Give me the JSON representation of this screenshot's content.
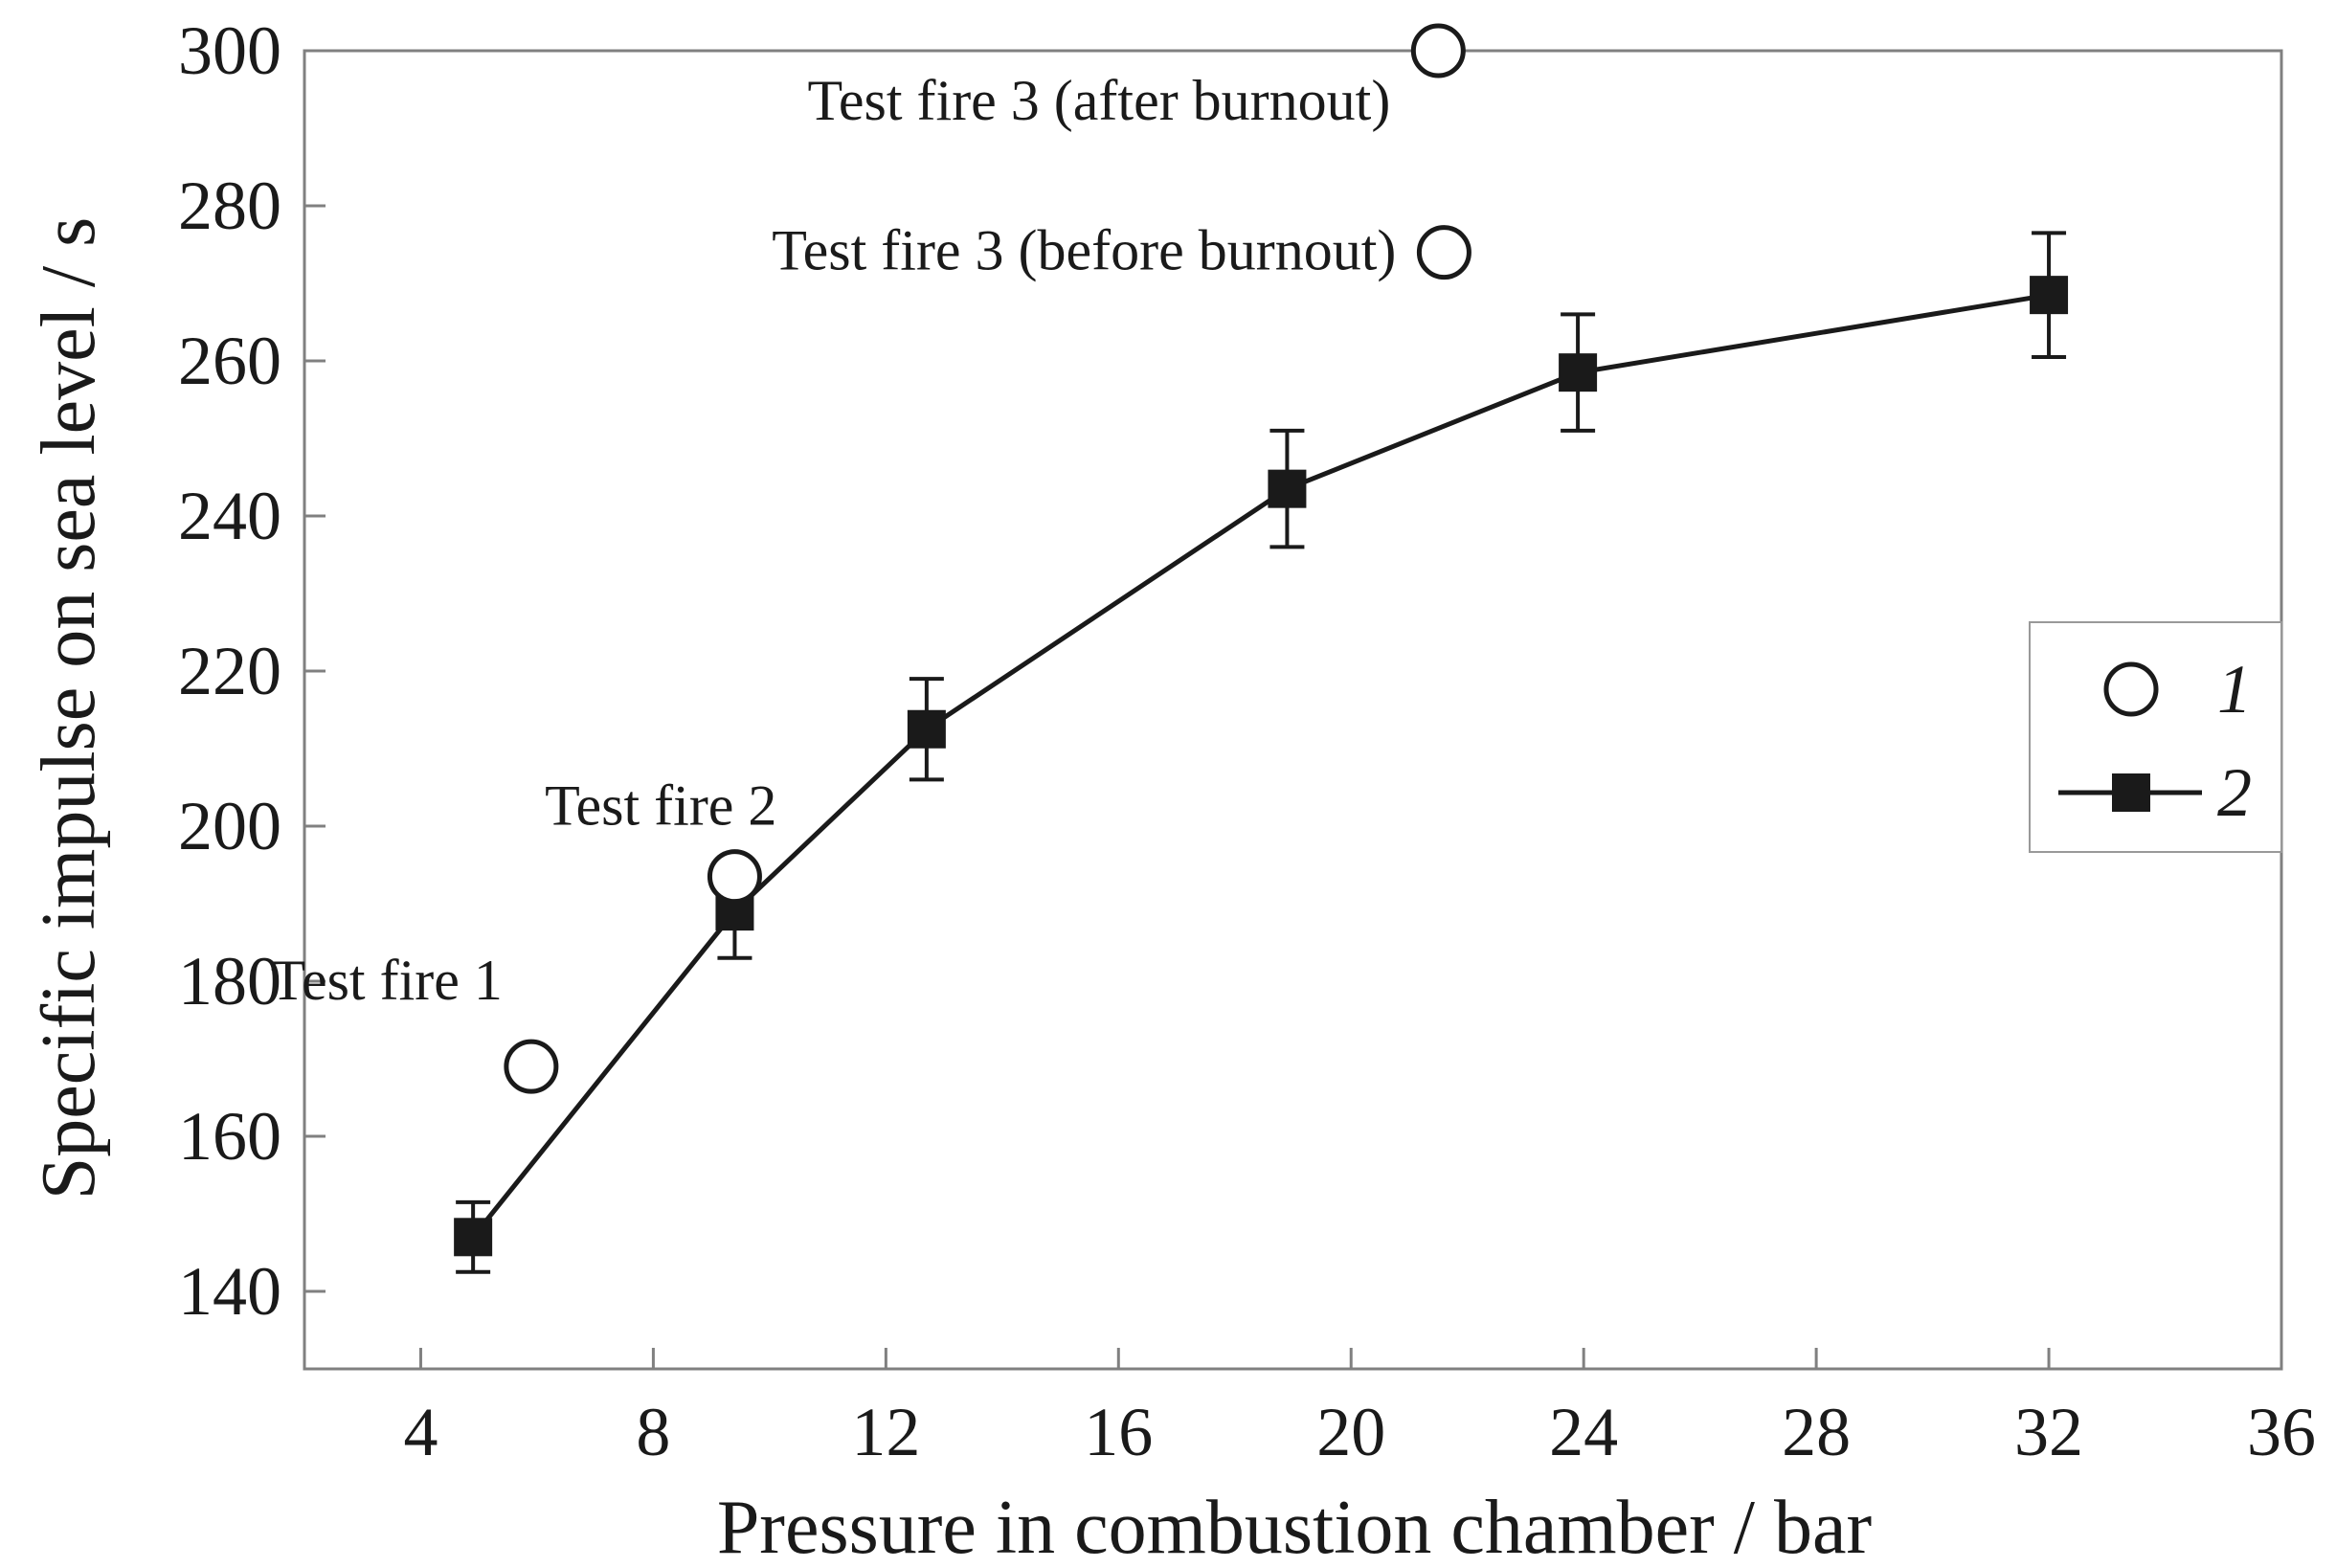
{
  "chart_data": {
    "type": "scatter",
    "xlabel": "Pressure in combustion chamber / bar",
    "ylabel": "Specific impulse on sea level / s",
    "xlim": [
      2,
      36
    ],
    "ylim": [
      130,
      300
    ],
    "x_ticks": [
      4,
      8,
      12,
      16,
      20,
      24,
      28,
      32,
      36
    ],
    "y_ticks": [
      140,
      160,
      180,
      200,
      220,
      240,
      260,
      280,
      300
    ],
    "legend_position": "right",
    "grid": false,
    "series": [
      {
        "name": "1",
        "marker": "open-circle",
        "line": false,
        "points": [
          {
            "x": 5.9,
            "y": 169,
            "label": "Test fire 1"
          },
          {
            "x": 9.4,
            "y": 193.5,
            "label": "Test fire 2"
          },
          {
            "x": 21.6,
            "y": 274,
            "label": "Test fire 3 (before burnout)"
          },
          {
            "x": 21.5,
            "y": 300,
            "label": "Test fire 3 (after burnout)"
          }
        ]
      },
      {
        "name": "2",
        "marker": "filled-square",
        "line": true,
        "points": [
          {
            "x": 4.9,
            "y": 147,
            "err": 4.5
          },
          {
            "x": 9.4,
            "y": 189,
            "err": 6
          },
          {
            "x": 12.7,
            "y": 212.5,
            "err": 6.5
          },
          {
            "x": 18.9,
            "y": 243.5,
            "err": 7.5
          },
          {
            "x": 23.9,
            "y": 258.5,
            "err": 7.5
          },
          {
            "x": 32,
            "y": 268.5,
            "err": 8
          }
        ]
      }
    ]
  }
}
